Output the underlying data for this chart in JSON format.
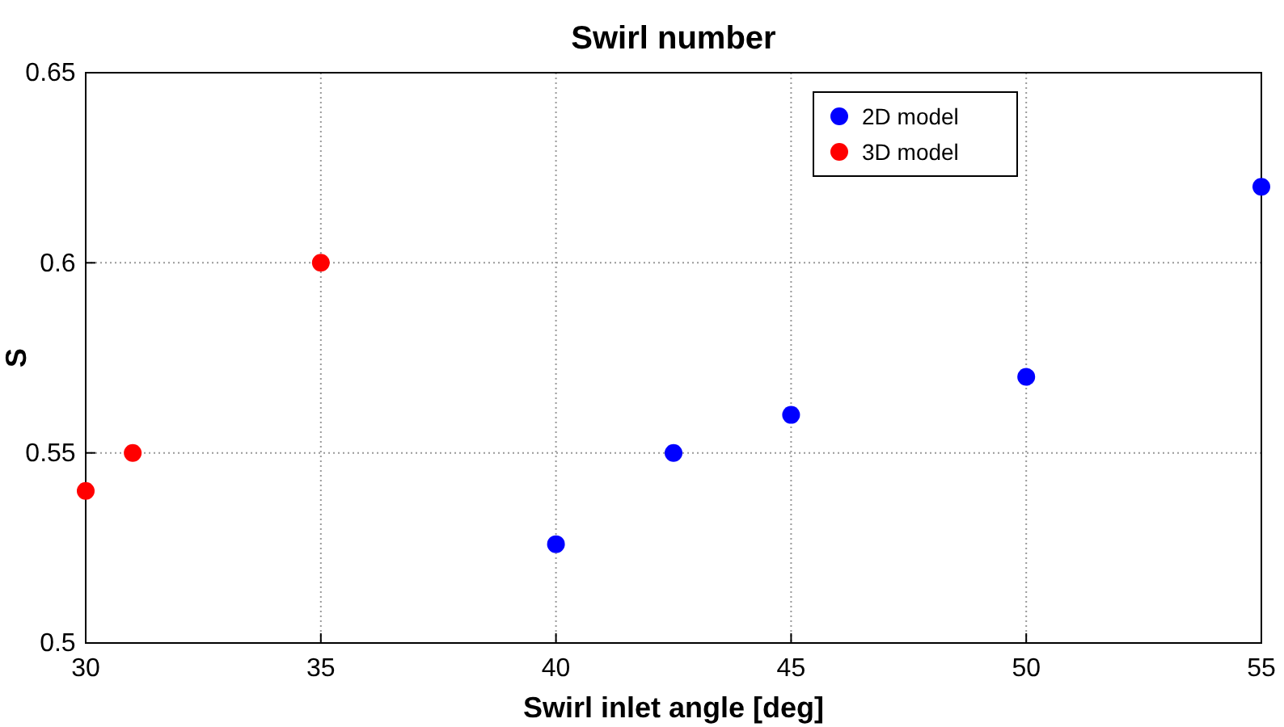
{
  "chart_data": {
    "type": "scatter",
    "title": "Swirl number",
    "xlabel": "Swirl inlet angle [deg]",
    "ylabel": "S",
    "xlim": [
      30,
      55
    ],
    "xticks": [
      30,
      35,
      40,
      45,
      50,
      55
    ],
    "ylim": [
      0.5,
      0.65
    ],
    "yticks": [
      0.5,
      0.55,
      0.6,
      0.65
    ],
    "grid": true,
    "legend": "top right",
    "marker": "circle",
    "series": [
      {
        "name": "2D model",
        "color": "#0000ff",
        "x": [
          40,
          42.5,
          45,
          50,
          55
        ],
        "values": [
          0.526,
          0.55,
          0.56,
          0.57,
          0.62
        ]
      },
      {
        "name": "3D model",
        "color": "#ff0000",
        "x": [
          30,
          31,
          35
        ],
        "values": [
          0.54,
          0.55,
          0.6
        ]
      }
    ]
  }
}
